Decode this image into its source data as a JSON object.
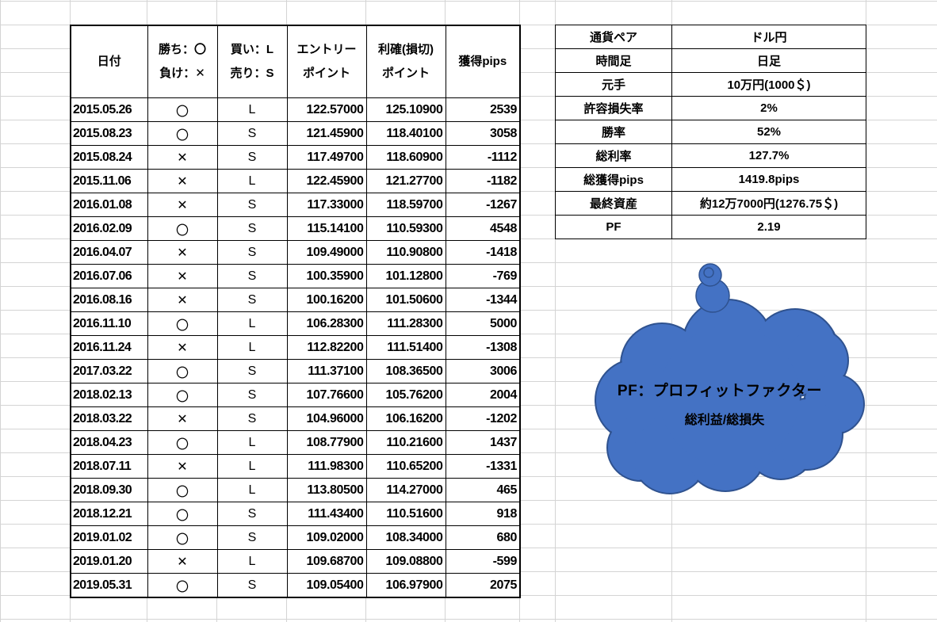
{
  "trades_table": {
    "headers": [
      {
        "line1": "日付",
        "line2": ""
      },
      {
        "line1": "勝ち：〇",
        "line2": "負け：✕"
      },
      {
        "line1": "買い：L",
        "line2": "売り：S"
      },
      {
        "line1": "エントリー",
        "line2": "ポイント"
      },
      {
        "line1": "利確(損切)",
        "line2": "ポイント"
      },
      {
        "line1": "獲得pips",
        "line2": ""
      }
    ],
    "rows": [
      [
        "2015.05.26",
        "〇",
        "L",
        "122.57000",
        "125.10900",
        "2539"
      ],
      [
        "2015.08.23",
        "〇",
        "S",
        "121.45900",
        "118.40100",
        "3058"
      ],
      [
        "2015.08.24",
        "✕",
        "S",
        "117.49700",
        "118.60900",
        "-1112"
      ],
      [
        "2015.11.06",
        "✕",
        "L",
        "122.45900",
        "121.27700",
        "-1182"
      ],
      [
        "2016.01.08",
        "✕",
        "S",
        "117.33000",
        "118.59700",
        "-1267"
      ],
      [
        "2016.02.09",
        "〇",
        "S",
        "115.14100",
        "110.59300",
        "4548"
      ],
      [
        "2016.04.07",
        "✕",
        "S",
        "109.49000",
        "110.90800",
        "-1418"
      ],
      [
        "2016.07.06",
        "✕",
        "S",
        "100.35900",
        "101.12800",
        "-769"
      ],
      [
        "2016.08.16",
        "✕",
        "S",
        "100.16200",
        "101.50600",
        "-1344"
      ],
      [
        "2016.11.10",
        "〇",
        "L",
        "106.28300",
        "111.28300",
        "5000"
      ],
      [
        "2016.11.24",
        "✕",
        "L",
        "112.82200",
        "111.51400",
        "-1308"
      ],
      [
        "2017.03.22",
        "〇",
        "S",
        "111.37100",
        "108.36500",
        "3006"
      ],
      [
        "2018.02.13",
        "〇",
        "S",
        "107.76600",
        "105.76200",
        "2004"
      ],
      [
        "2018.03.22",
        "✕",
        "S",
        "104.96000",
        "106.16200",
        "-1202"
      ],
      [
        "2018.04.23",
        "〇",
        "L",
        "108.77900",
        "110.21600",
        "1437"
      ],
      [
        "2018.07.11",
        "✕",
        "L",
        "111.98300",
        "110.65200",
        "-1331"
      ],
      [
        "2018.09.30",
        "〇",
        "L",
        "113.80500",
        "114.27000",
        "465"
      ],
      [
        "2018.12.21",
        "〇",
        "S",
        "111.43400",
        "110.51600",
        "918"
      ],
      [
        "2019.01.02",
        "〇",
        "S",
        "109.02000",
        "108.34000",
        "680"
      ],
      [
        "2019.01.20",
        "✕",
        "L",
        "109.68700",
        "109.08800",
        "-599"
      ],
      [
        "2019.05.31",
        "〇",
        "S",
        "109.05400",
        "106.97900",
        "2075"
      ]
    ]
  },
  "summary_table": [
    {
      "label": "通貨ペア",
      "value": "ドル円"
    },
    {
      "label": "時間足",
      "value": "日足"
    },
    {
      "label": "元手",
      "value": "10万円(1000＄)"
    },
    {
      "label": "許容損失率",
      "value": "2%"
    },
    {
      "label": "勝率",
      "value": "52%"
    },
    {
      "label": "総利率",
      "value": "127.7%"
    },
    {
      "label": "総獲得pips",
      "value": "1419.8pips"
    },
    {
      "label": "最終資産",
      "value": "約12万7000円(1276.75＄)"
    },
    {
      "label": "PF",
      "value": "2.19"
    }
  ],
  "callout": {
    "title": "PF：プロフィットファクター",
    "subtitle": "総利益/総損失",
    "fill_color": "#4472C4",
    "stroke_color": "#2F528F"
  }
}
